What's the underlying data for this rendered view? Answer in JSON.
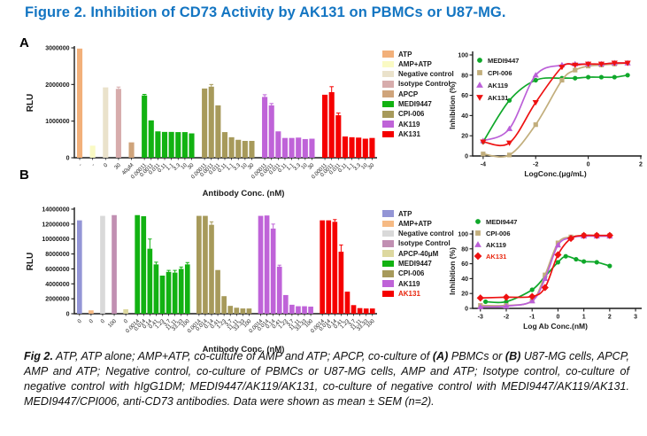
{
  "title": {
    "text": "Figure 2. Inhibition of CD73 Activity by AK131 on PBMCs or U87-MG."
  },
  "colors": {
    "title_blue": "#1375C2",
    "text": "#1a1a1a",
    "axis": "#1a1a1a",
    "ak131_red": "#E8250D"
  },
  "panel_a": {
    "label": "A"
  },
  "panel_b": {
    "label": "B"
  },
  "caption": {
    "segments": [
      {
        "text": "Fig 2.",
        "bold": true
      },
      {
        "text": " ATP, ATP alone; AMP+ATP, co-culture of AMP and ATP; APCP, co-culture of ",
        "bold": false
      },
      {
        "text": "(A)",
        "bold": true
      },
      {
        "text": " PBMCs or ",
        "bold": false
      },
      {
        "text": "(B)",
        "bold": true
      },
      {
        "text": " U87-MG cells, APCP, AMP and ATP; Negative control, co-culture of PBMCs or U87-MG cells, AMP and ATP; Isotype control, co-culture of negative control with hIgG1DM; MEDI9447/AK119/AK131, co-culture of negative control with MEDI9447/AK119/AK131. MEDI9447/CPI006, anti-CD73 antibodies. Data were shown as mean ± SEM (n=2).",
        "bold": false
      }
    ]
  },
  "chart_data": [
    {
      "id": "bar_a",
      "type": "bar",
      "ylabel": "RLU",
      "xlabel": "Antibody Conc. (nM)",
      "ylim": [
        0,
        3000000
      ],
      "yticks": [
        0,
        1000000,
        2000000,
        3000000
      ],
      "ytick_labels": [
        "0",
        "1000000",
        "2000000",
        "3000000"
      ],
      "groups": [
        {
          "name": "ATP",
          "color": "#F2B07A",
          "labels": [
            "-"
          ],
          "values": [
            2980000
          ],
          "errs": [
            0
          ]
        },
        {
          "name": "AMP+ATP",
          "color": "#FAFAC4",
          "labels": [
            "-"
          ],
          "values": [
            330000
          ],
          "errs": [
            0
          ]
        },
        {
          "name": "Negative control",
          "color": "#EAE2CB",
          "labels": [
            "0"
          ],
          "values": [
            1920000
          ],
          "errs": [
            0
          ]
        },
        {
          "name": "Isotype Control",
          "color": "#D7ACAC",
          "labels": [
            "30"
          ],
          "values": [
            1880000
          ],
          "errs": [
            50000
          ]
        },
        {
          "name": "APCP",
          "color": "#CFA47B",
          "labels": [
            "40μM"
          ],
          "values": [
            420000
          ],
          "errs": [
            0
          ]
        },
        {
          "name": "MEDI9447",
          "color": "#12B212",
          "labels": [
            "0.00011",
            "0.0011",
            "0.011",
            "0.11",
            "1.1",
            "3.3",
            "10",
            "30"
          ],
          "values": [
            1700000,
            1020000,
            720000,
            705000,
            705000,
            700000,
            700000,
            665000
          ],
          "errs": [
            30000,
            0,
            0,
            0,
            0,
            0,
            0,
            0
          ]
        },
        {
          "name": "CPI-006",
          "color": "#A79A5B",
          "labels": [
            "0.00011",
            "0.0011",
            "0.011",
            "0.11",
            "1.1",
            "3.3",
            "10",
            "30"
          ],
          "values": [
            1890000,
            1940000,
            1430000,
            700000,
            560000,
            490000,
            460000,
            460000
          ],
          "errs": [
            0,
            60000,
            0,
            0,
            0,
            0,
            0,
            0
          ]
        },
        {
          "name": "AK119",
          "color": "#BF63D8",
          "labels": [
            "0.00011",
            "0.0011",
            "0.011",
            "0.11",
            "1.1",
            "3.3",
            "10",
            "30"
          ],
          "values": [
            1660000,
            1430000,
            720000,
            540000,
            540000,
            550000,
            510000,
            520000
          ],
          "errs": [
            60000,
            50000,
            0,
            0,
            0,
            0,
            0,
            0
          ]
        },
        {
          "name": "AK131",
          "color": "#F50000",
          "label_color": "#1a1a1a",
          "labels": [
            "0.00011",
            "0.0011",
            "0.011",
            "0.11",
            "1.1",
            "3.3",
            "10",
            "30"
          ],
          "values": [
            1720000,
            1790000,
            1160000,
            580000,
            560000,
            550000,
            520000,
            540000
          ],
          "errs": [
            0,
            150000,
            60000,
            0,
            0,
            0,
            0,
            0
          ]
        }
      ]
    },
    {
      "id": "curve_a",
      "type": "line",
      "ylabel": "Inhibition (%)",
      "xlabel": "LogConc.(μg/mL)",
      "xlim": [
        -4.4,
        1.9
      ],
      "ylim": [
        0,
        100
      ],
      "xticks": [
        -4,
        -2,
        0,
        2
      ],
      "yticks": [
        0,
        20,
        40,
        60,
        80,
        100
      ],
      "series": [
        {
          "name": "MEDI9447",
          "color": "#0FA82A",
          "marker": "circle",
          "x": [
            -4,
            -3,
            -2,
            -1,
            -0.5,
            0,
            0.5,
            1,
            1.5
          ],
          "y": [
            14,
            55,
            75,
            77,
            77,
            78,
            78,
            78,
            80
          ]
        },
        {
          "name": "CPI-006",
          "color": "#C2AE7C",
          "marker": "square",
          "x": [
            -4,
            -3,
            -2,
            -1,
            -0.5,
            0,
            0.5,
            1,
            1.5
          ],
          "y": [
            2,
            1,
            31,
            75,
            85,
            89,
            90,
            91,
            92
          ]
        },
        {
          "name": "AK119",
          "color": "#BB5FD8",
          "marker": "triangle-up",
          "x": [
            -4,
            -3,
            -2,
            -1,
            -0.5,
            0,
            0.5,
            1,
            1.5
          ],
          "y": [
            15,
            27,
            80,
            90,
            91,
            91,
            91,
            92,
            92
          ]
        },
        {
          "name": "AK131",
          "color": "#EE1111",
          "marker": "triangle-down",
          "x": [
            -4,
            -3,
            -2,
            -1,
            -0.5,
            0,
            0.5,
            1,
            1.5
          ],
          "y": [
            14,
            13,
            53,
            88,
            90,
            91,
            91,
            92,
            92
          ]
        }
      ]
    },
    {
      "id": "bar_b",
      "type": "bar",
      "ylabel": "RLU",
      "xlabel": "Antibody Conc. (nM)",
      "ylim": [
        0,
        14000000
      ],
      "yticks": [
        0,
        2000000,
        4000000,
        6000000,
        8000000,
        10000000,
        12000000,
        14000000
      ],
      "ytick_labels": [
        "0",
        "2000000",
        "4000000",
        "6000000",
        "8000000",
        "10000000",
        "12000000",
        "14000000"
      ],
      "groups": [
        {
          "name": "ATP",
          "color": "#9395D6",
          "labels": [
            "0"
          ],
          "values": [
            12500000
          ],
          "errs": [
            0
          ]
        },
        {
          "name": "AMP+ATP",
          "color": "#F6BA84",
          "labels": [
            "0"
          ],
          "values": [
            450000
          ],
          "errs": [
            0
          ]
        },
        {
          "name": "Negative control",
          "color": "#D9D9D9",
          "labels": [
            "0"
          ],
          "values": [
            13100000
          ],
          "errs": [
            0
          ]
        },
        {
          "name": "Isotype Control",
          "color": "#C18FB2",
          "labels": [
            "100"
          ],
          "values": [
            13200000
          ],
          "errs": [
            0
          ]
        },
        {
          "name": "APCP-40μM",
          "color": "#DDD89F",
          "labels": [
            "0"
          ],
          "values": [
            600000
          ],
          "errs": [
            0
          ]
        },
        {
          "name": "MEDI9447",
          "color": "#12B212",
          "labels": [
            "0.0014",
            "0.014",
            "0.14",
            "0.41",
            "1.23",
            "3.7",
            "11.11",
            "33.33",
            "100"
          ],
          "values": [
            13200000,
            13050000,
            8700000,
            6600000,
            5100000,
            5600000,
            5500000,
            6000000,
            6600000
          ],
          "errs": [
            0,
            0,
            1300000,
            300000,
            0,
            200000,
            300000,
            250000,
            250000
          ]
        },
        {
          "name": "CPI-006",
          "color": "#A79A5B",
          "labels": [
            "0.0014",
            "0.014",
            "0.14",
            "0.41",
            "1.23",
            "3.7",
            "11.11",
            "33.33",
            "100"
          ],
          "values": [
            13100000,
            13100000,
            11900000,
            5850000,
            2350000,
            1050000,
            800000,
            700000,
            700000
          ],
          "errs": [
            0,
            0,
            400000,
            0,
            0,
            0,
            0,
            0,
            0
          ]
        },
        {
          "name": "AK119",
          "color": "#BF63D8",
          "labels": [
            "0.0014",
            "0.014",
            "0.14",
            "0.41",
            "1.23",
            "3.7",
            "11.11",
            "33.33",
            "100"
          ],
          "values": [
            13100000,
            13150000,
            11400000,
            6300000,
            2500000,
            1200000,
            1000000,
            1000000,
            950000
          ],
          "errs": [
            0,
            0,
            600000,
            200000,
            0,
            0,
            0,
            0,
            0
          ]
        },
        {
          "name": "AK131",
          "color": "#F50000",
          "label_color": "#E8250D",
          "labels": [
            "0.0014",
            "0.014",
            "0.14",
            "0.41",
            "1.23",
            "3.7",
            "11.11",
            "33.33",
            "100"
          ],
          "values": [
            12500000,
            12500000,
            12300000,
            8300000,
            2950000,
            1150000,
            750000,
            700000,
            700000
          ],
          "errs": [
            0,
            0,
            300000,
            900000,
            0,
            0,
            0,
            0,
            0
          ]
        }
      ]
    },
    {
      "id": "curve_b",
      "type": "line",
      "ylabel": "Inhibition (%)",
      "xlabel": "Log Ab Conc.(nM)",
      "xlim": [
        -3.3,
        3.1
      ],
      "ylim": [
        0,
        100
      ],
      "xticks": [
        -3,
        -2,
        -1,
        0,
        1,
        2,
        3
      ],
      "yticks": [
        0,
        20,
        40,
        60,
        80,
        100
      ],
      "series": [
        {
          "name": "MEDI9447",
          "color": "#0FA82A",
          "marker": "circle",
          "x": [
            -2.8,
            -2,
            -1,
            -0.5,
            0,
            0.3,
            0.7,
            1,
            1.5,
            2
          ],
          "y": [
            9,
            9,
            25,
            43,
            62,
            70,
            66,
            63,
            62,
            57
          ]
        },
        {
          "name": "CPI-006",
          "color": "#C2AE7C",
          "marker": "square",
          "x": [
            -3,
            -2,
            -1,
            -0.5,
            0,
            0.5,
            1,
            1.5,
            2
          ],
          "y": [
            4,
            4,
            10,
            45,
            88,
            96,
            98,
            98,
            98
          ]
        },
        {
          "name": "AK119",
          "color": "#BB5FD8",
          "marker": "triangle-up",
          "x": [
            -3,
            -2,
            -1,
            -0.5,
            0,
            0.5,
            1,
            1.5,
            2
          ],
          "y": [
            2,
            3,
            10,
            40,
            85,
            95,
            97,
            97,
            97
          ]
        },
        {
          "name": "AK131",
          "color": "#EE1111",
          "marker": "diamond",
          "label_color": "#E8250D",
          "x": [
            -3,
            -2,
            -1,
            -0.5,
            0,
            0.5,
            1,
            1.5,
            2
          ],
          "y": [
            14,
            15,
            16,
            28,
            72,
            94,
            98,
            98,
            98
          ]
        }
      ]
    }
  ]
}
